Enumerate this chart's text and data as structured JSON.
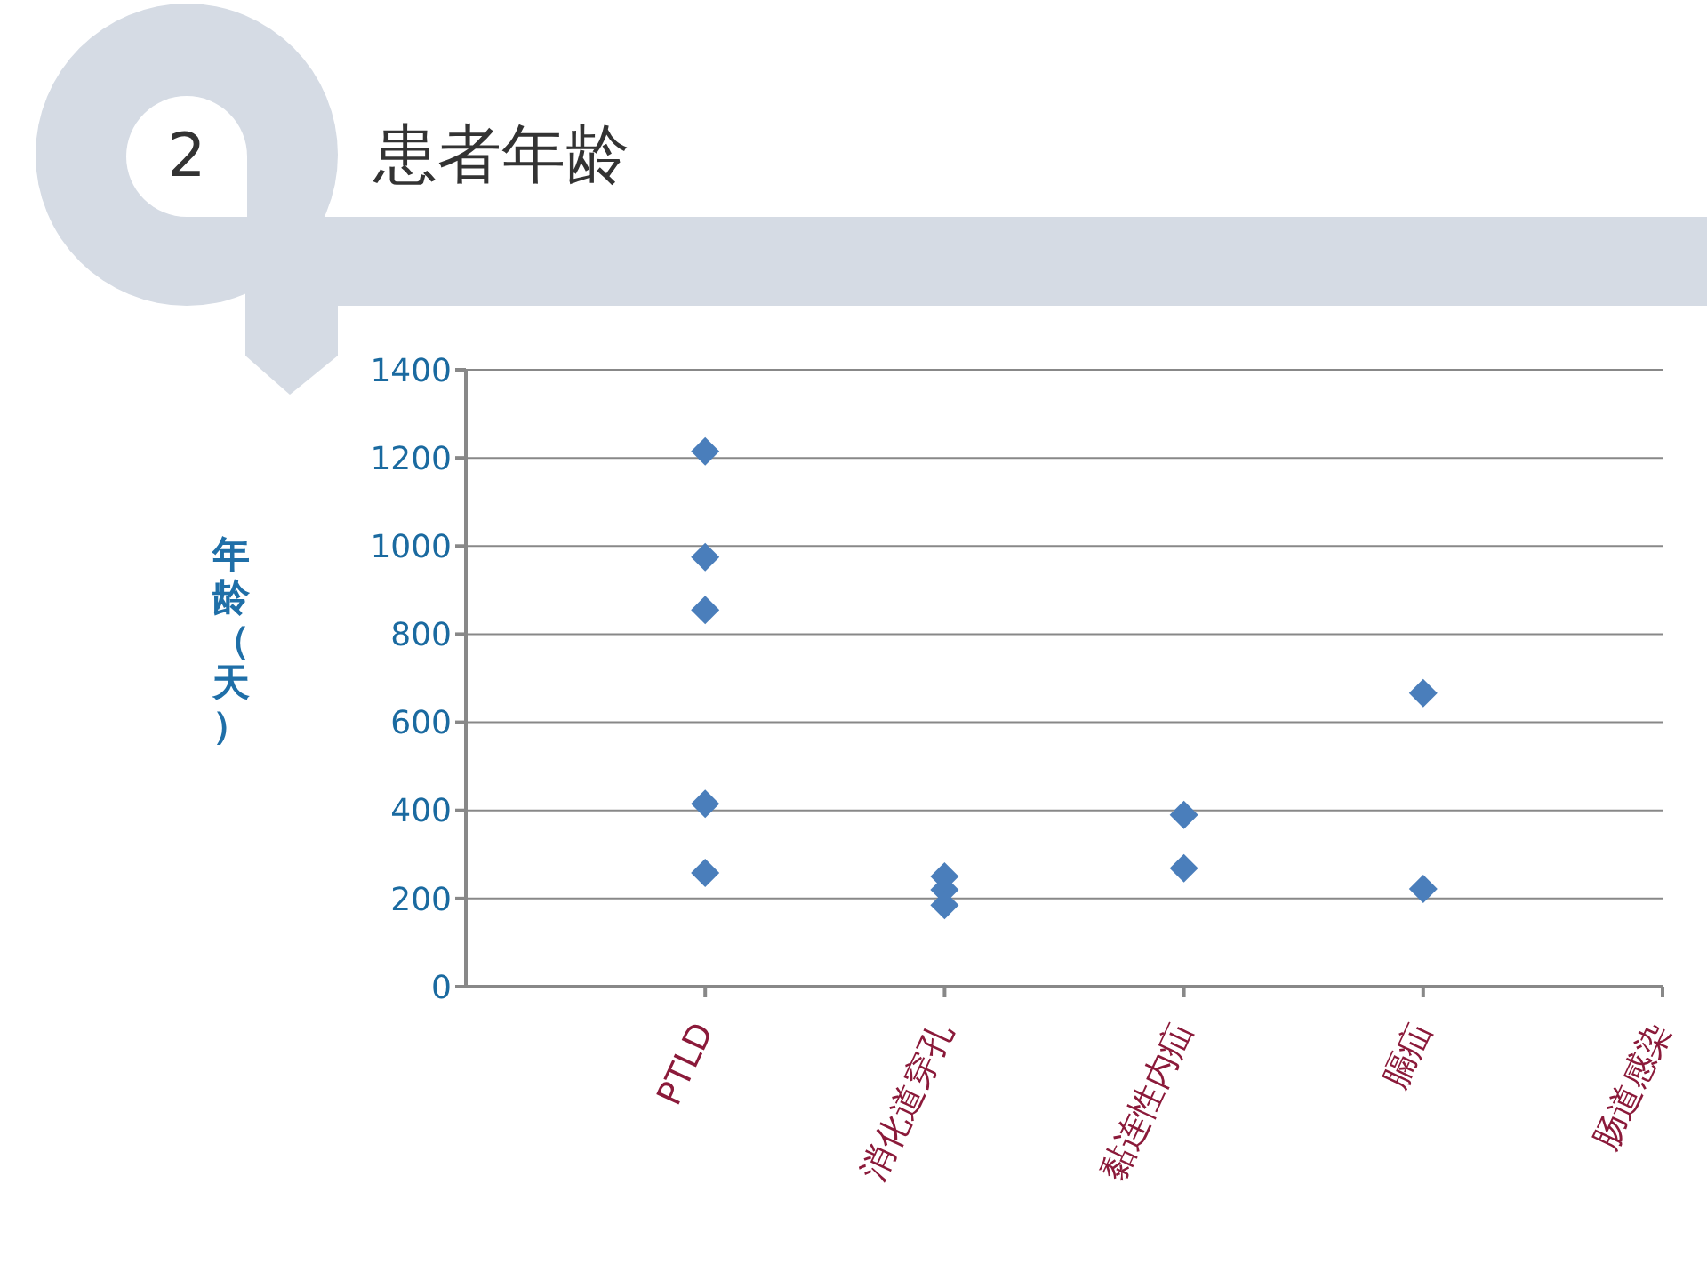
{
  "chart_data": {
    "type": "scatter",
    "title": "患者年龄",
    "ylabel": "年龄（天）",
    "annotations": [
      "2"
    ],
    "categories": [
      "PTLD",
      "消化道穿孔",
      "黏连性内疝",
      "膈疝",
      "肠道感染"
    ],
    "series": [
      {
        "color": "#4a7ebb",
        "x": [
          "PTLD",
          "PTLD",
          "PTLD",
          "PTLD",
          "PTLD",
          "PTLD",
          "消化道穿孔",
          "消化道穿孔",
          "消化道穿孔",
          "黏连性内疝",
          "黏连性内疝",
          "黏连性内疝",
          "膈疝",
          "膈疝"
        ],
        "values": [
          1215,
          975,
          855,
          null,
          415,
          258,
          250,
          220,
          185,
          null,
          390,
          269,
          666,
          222
        ]
      }
    ],
    "ylim": [
      0,
      1400
    ],
    "yticks": [
      0,
      200,
      400,
      600,
      800,
      1000,
      1200,
      1400
    ],
    "grid": "y",
    "marker": "diamond"
  }
}
